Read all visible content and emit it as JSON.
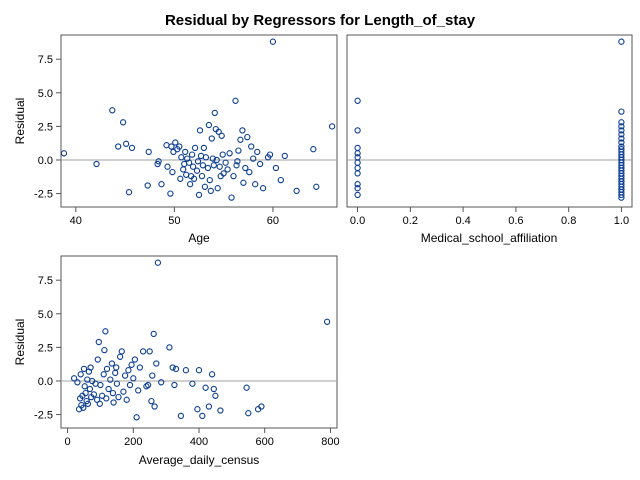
{
  "chart_data": {
    "type": "scatter",
    "title": "Residual by Regressors for Length_of_stay",
    "panels": [
      {
        "xlabel": "Age",
        "ylabel": "Residual",
        "xlim": [
          38.5,
          66.5
        ],
        "ylim": [
          -3.5,
          9.3
        ],
        "xticks": [
          40,
          50,
          60
        ],
        "yticks": [
          -2.5,
          0.0,
          2.5,
          5.0,
          7.5
        ],
        "ytick_labels": [
          "-2.5",
          "0.0",
          "2.5",
          "5.0",
          "7.5"
        ],
        "reference_y": 0,
        "points": [
          [
            38.8,
            0.5
          ],
          [
            42.1,
            -0.3
          ],
          [
            43.7,
            3.7
          ],
          [
            44.3,
            1.0
          ],
          [
            44.8,
            2.8
          ],
          [
            45.1,
            1.2
          ],
          [
            45.4,
            -2.4
          ],
          [
            45.7,
            0.9
          ],
          [
            47.3,
            -1.9
          ],
          [
            47.4,
            0.6
          ],
          [
            48.3,
            -0.3
          ],
          [
            48.4,
            -0.1
          ],
          [
            48.7,
            -1.8
          ],
          [
            49.2,
            1.1
          ],
          [
            49.3,
            -0.5
          ],
          [
            49.6,
            -2.5
          ],
          [
            49.7,
            1.0
          ],
          [
            49.8,
            -0.9
          ],
          [
            49.9,
            0.6
          ],
          [
            50.1,
            1.3
          ],
          [
            50.3,
            0.8
          ],
          [
            50.5,
            1.0
          ],
          [
            50.6,
            -1.4
          ],
          [
            50.7,
            0.2
          ],
          [
            50.9,
            -0.7
          ],
          [
            51.0,
            -0.3
          ],
          [
            51.1,
            0.6
          ],
          [
            51.2,
            -1.1
          ],
          [
            51.3,
            0.1
          ],
          [
            51.5,
            -0.2
          ],
          [
            51.6,
            -1.8
          ],
          [
            51.7,
            -1.2
          ],
          [
            51.8,
            0.4
          ],
          [
            51.9,
            -0.5
          ],
          [
            52.0,
            -1.4
          ],
          [
            52.1,
            0.9
          ],
          [
            52.3,
            -0.8
          ],
          [
            52.4,
            -0.1
          ],
          [
            52.5,
            -2.6
          ],
          [
            52.6,
            2.2
          ],
          [
            52.7,
            0.3
          ],
          [
            52.8,
            -1.2
          ],
          [
            52.9,
            -0.4
          ],
          [
            53.0,
            0.9
          ],
          [
            53.1,
            -2.0
          ],
          [
            53.2,
            0.2
          ],
          [
            53.4,
            -0.6
          ],
          [
            53.5,
            2.6
          ],
          [
            53.6,
            -1.5
          ],
          [
            53.7,
            -2.3
          ],
          [
            53.8,
            1.6
          ],
          [
            53.9,
            0.1
          ],
          [
            54.0,
            -0.4
          ],
          [
            54.1,
            3.5
          ],
          [
            54.2,
            2.3
          ],
          [
            54.3,
            0.0
          ],
          [
            54.4,
            -2.1
          ],
          [
            54.5,
            2.1
          ],
          [
            54.6,
            -0.5
          ],
          [
            54.7,
            -1.2
          ],
          [
            54.8,
            1.8
          ],
          [
            54.9,
            0.4
          ],
          [
            55.0,
            -1.0
          ],
          [
            55.2,
            -0.2
          ],
          [
            55.4,
            -0.7
          ],
          [
            55.6,
            0.5
          ],
          [
            55.8,
            -2.8
          ],
          [
            56.0,
            -1.2
          ],
          [
            56.2,
            4.4
          ],
          [
            56.3,
            -0.4
          ],
          [
            56.4,
            -0.1
          ],
          [
            56.5,
            0.7
          ],
          [
            56.7,
            1.5
          ],
          [
            56.9,
            2.2
          ],
          [
            57.0,
            -1.7
          ],
          [
            57.2,
            -0.6
          ],
          [
            57.4,
            1.7
          ],
          [
            57.6,
            -0.9
          ],
          [
            57.8,
            1.0
          ],
          [
            58.0,
            0.1
          ],
          [
            58.2,
            -1.8
          ],
          [
            58.4,
            0.6
          ],
          [
            58.7,
            -0.3
          ],
          [
            59.0,
            -2.1
          ],
          [
            59.5,
            0.2
          ],
          [
            59.7,
            0.4
          ],
          [
            60.0,
            8.8
          ],
          [
            60.3,
            -0.6
          ],
          [
            60.8,
            -1.5
          ],
          [
            61.2,
            0.3
          ],
          [
            62.4,
            -2.3
          ],
          [
            64.1,
            0.8
          ],
          [
            64.4,
            -2.0
          ],
          [
            66.0,
            2.5
          ]
        ]
      },
      {
        "xlabel": "Medical_school_affiliation",
        "ylabel": "",
        "xlim": [
          -0.04,
          1.04
        ],
        "ylim": [
          -3.5,
          9.3
        ],
        "xticks": [
          0.0,
          0.2,
          0.4,
          0.6,
          0.8,
          1.0
        ],
        "xtick_labels": [
          "0.0",
          "0.2",
          "0.4",
          "0.6",
          "0.8",
          "1.0"
        ],
        "reference_y": 0,
        "points": [
          [
            0,
            4.4
          ],
          [
            0,
            2.2
          ],
          [
            0,
            0.9
          ],
          [
            0,
            0.5
          ],
          [
            0,
            0.2
          ],
          [
            0,
            -0.2
          ],
          [
            0,
            -0.6
          ],
          [
            0,
            -1.0
          ],
          [
            0,
            -1.8
          ],
          [
            0,
            -2.1
          ],
          [
            0,
            -2.6
          ],
          [
            1,
            8.8
          ],
          [
            1,
            3.6
          ],
          [
            1,
            2.8
          ],
          [
            1,
            2.5
          ],
          [
            1,
            2.2
          ],
          [
            1,
            1.9
          ],
          [
            1,
            1.6
          ],
          [
            1,
            1.3
          ],
          [
            1,
            1.0
          ],
          [
            1,
            0.8
          ],
          [
            1,
            0.6
          ],
          [
            1,
            0.4
          ],
          [
            1,
            0.2
          ],
          [
            1,
            0.0
          ],
          [
            1,
            -0.2
          ],
          [
            1,
            -0.4
          ],
          [
            1,
            -0.6
          ],
          [
            1,
            -0.8
          ],
          [
            1,
            -1.0
          ],
          [
            1,
            -1.2
          ],
          [
            1,
            -1.4
          ],
          [
            1,
            -1.6
          ],
          [
            1,
            -1.8
          ],
          [
            1,
            -2.0
          ],
          [
            1,
            -2.2
          ],
          [
            1,
            -2.4
          ],
          [
            1,
            -2.6
          ],
          [
            1,
            -2.8
          ]
        ]
      },
      {
        "xlabel": "Average_daily_census",
        "ylabel": "Residual",
        "xlim": [
          -20,
          820
        ],
        "ylim": [
          -3.5,
          9.3
        ],
        "xticks": [
          0,
          200,
          400,
          600,
          800
        ],
        "yticks": [
          -2.5,
          0.0,
          2.5,
          5.0,
          7.5
        ],
        "ytick_labels": [
          "-2.5",
          "0.0",
          "2.5",
          "5.0",
          "7.5"
        ],
        "reference_y": 0,
        "points": [
          [
            20,
            0.2
          ],
          [
            30,
            -0.1
          ],
          [
            35,
            -2.1
          ],
          [
            38,
            -1.3
          ],
          [
            40,
            0.5
          ],
          [
            42,
            -1.8
          ],
          [
            45,
            -1.1
          ],
          [
            48,
            -2.0
          ],
          [
            50,
            0.9
          ],
          [
            52,
            -0.4
          ],
          [
            55,
            -0.9
          ],
          [
            58,
            -1.5
          ],
          [
            60,
            0.1
          ],
          [
            62,
            -1.7
          ],
          [
            65,
            0.7
          ],
          [
            68,
            -0.6
          ],
          [
            70,
            1.0
          ],
          [
            72,
            -1.2
          ],
          [
            75,
            0.0
          ],
          [
            80,
            -1.0
          ],
          [
            85,
            -0.2
          ],
          [
            90,
            -1.4
          ],
          [
            92,
            1.6
          ],
          [
            95,
            2.9
          ],
          [
            98,
            -1.7
          ],
          [
            100,
            -0.3
          ],
          [
            105,
            -1.1
          ],
          [
            110,
            0.5
          ],
          [
            112,
            2.3
          ],
          [
            115,
            3.7
          ],
          [
            118,
            -1.3
          ],
          [
            120,
            0.9
          ],
          [
            125,
            -0.6
          ],
          [
            130,
            0.1
          ],
          [
            135,
            1.3
          ],
          [
            138,
            -0.9
          ],
          [
            140,
            -1.6
          ],
          [
            145,
            0.6
          ],
          [
            148,
            1.0
          ],
          [
            150,
            -0.2
          ],
          [
            155,
            -1.2
          ],
          [
            160,
            1.8
          ],
          [
            165,
            2.2
          ],
          [
            170,
            -0.8
          ],
          [
            175,
            0.4
          ],
          [
            180,
            -1.4
          ],
          [
            185,
            0.8
          ],
          [
            190,
            -0.3
          ],
          [
            195,
            1.2
          ],
          [
            200,
            0.2
          ],
          [
            205,
            1.6
          ],
          [
            210,
            -2.7
          ],
          [
            215,
            -0.7
          ],
          [
            220,
            1.0
          ],
          [
            230,
            2.2
          ],
          [
            240,
            -0.4
          ],
          [
            245,
            -0.3
          ],
          [
            250,
            2.2
          ],
          [
            255,
            -1.5
          ],
          [
            258,
            0.4
          ],
          [
            262,
            3.5
          ],
          [
            265,
            -1.9
          ],
          [
            270,
            1.3
          ],
          [
            275,
            8.8
          ],
          [
            285,
            -0.1
          ],
          [
            310,
            2.5
          ],
          [
            320,
            1.0
          ],
          [
            325,
            -0.3
          ],
          [
            330,
            0.9
          ],
          [
            345,
            -2.6
          ],
          [
            360,
            0.8
          ],
          [
            380,
            -0.2
          ],
          [
            395,
            -2.1
          ],
          [
            400,
            0.8
          ],
          [
            410,
            -2.6
          ],
          [
            420,
            -0.5
          ],
          [
            430,
            -1.9
          ],
          [
            440,
            0.5
          ],
          [
            445,
            -0.6
          ],
          [
            450,
            -1.1
          ],
          [
            465,
            -2.2
          ],
          [
            545,
            -0.5
          ],
          [
            550,
            -2.4
          ],
          [
            580,
            -2.1
          ],
          [
            590,
            -1.9
          ],
          [
            790,
            4.4
          ]
        ]
      }
    ]
  }
}
